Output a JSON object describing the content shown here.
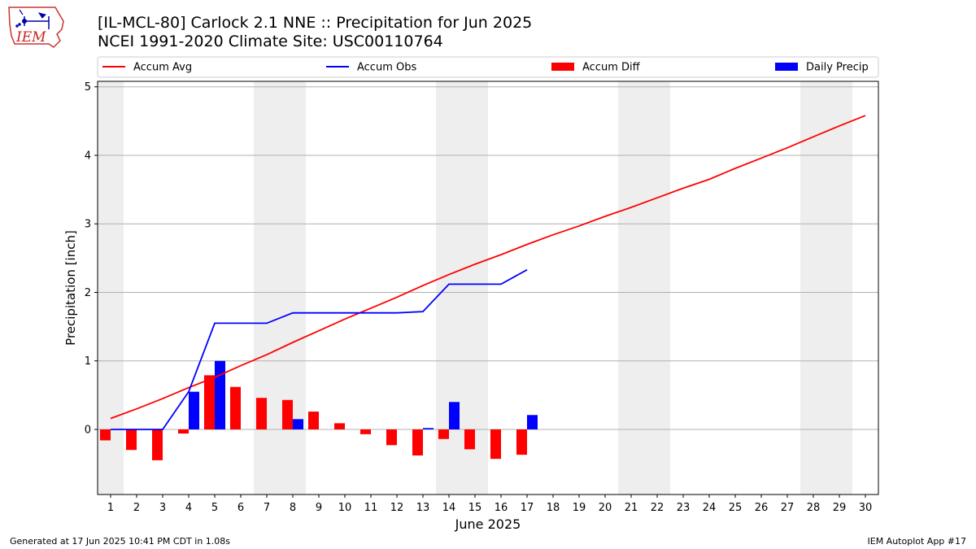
{
  "header": {
    "title_line1": "[IL-MCL-80] Carlock 2.1 NNE :: Precipitation for Jun 2025",
    "title_line2": "NCEI 1991-2020 Climate Site: USC00110764",
    "logo_text": "IEM"
  },
  "footer": {
    "generated": "Generated at 17 Jun 2025 10:41 PM CDT in 1.08s",
    "app": "IEM Autoplot App #17"
  },
  "colors": {
    "accum_avg": "#ff0000",
    "accum_obs": "#0000ff",
    "accum_diff": "#ff0000",
    "daily_precip": "#0000ff",
    "weekend_shade": "#eeeeee",
    "grid": "#b0b0b0"
  },
  "chart_data": {
    "type": "line",
    "xlabel": "June 2025",
    "ylabel": "Precipitation [inch]",
    "xlim": [
      0.5,
      30.5
    ],
    "ylim": [
      -0.95,
      5.08
    ],
    "yticks": [
      0,
      1,
      2,
      3,
      4,
      5
    ],
    "xticks": [
      1,
      2,
      3,
      4,
      5,
      6,
      7,
      8,
      9,
      10,
      11,
      12,
      13,
      14,
      15,
      16,
      17,
      18,
      19,
      20,
      21,
      22,
      23,
      24,
      25,
      26,
      27,
      28,
      29,
      30
    ],
    "grid": "horizontal",
    "legend_position": "top",
    "legend": [
      "Accum Avg",
      "Accum Obs",
      "Accum Diff",
      "Daily Precip"
    ],
    "shaded_days": [
      1,
      7,
      8,
      14,
      15,
      21,
      22,
      28,
      29
    ],
    "series": [
      {
        "name": "Accum Avg",
        "kind": "line",
        "color": "#ff0000",
        "x": [
          1,
          2,
          3,
          4,
          5,
          6,
          7,
          8,
          9,
          10,
          11,
          12,
          13,
          14,
          15,
          16,
          17,
          18,
          19,
          20,
          21,
          22,
          23,
          24,
          25,
          26,
          27,
          28,
          29,
          30
        ],
        "values": [
          0.16,
          0.3,
          0.45,
          0.61,
          0.76,
          0.93,
          1.09,
          1.27,
          1.44,
          1.61,
          1.77,
          1.93,
          2.1,
          2.26,
          2.41,
          2.55,
          2.7,
          2.84,
          2.97,
          3.11,
          3.24,
          3.38,
          3.52,
          3.65,
          3.81,
          3.96,
          4.11,
          4.27,
          4.43,
          4.58
        ]
      },
      {
        "name": "Accum Obs",
        "kind": "line",
        "color": "#0000ff",
        "x": [
          1,
          2,
          3,
          4,
          5,
          6,
          7,
          8,
          9,
          10,
          11,
          12,
          13,
          14,
          15,
          16,
          17
        ],
        "values": [
          0,
          0,
          0,
          0.55,
          1.55,
          1.55,
          1.55,
          1.7,
          1.7,
          1.7,
          1.7,
          1.7,
          1.72,
          2.12,
          2.12,
          2.12,
          2.33
        ]
      },
      {
        "name": "Accum Diff",
        "kind": "bar",
        "color": "#ff0000",
        "x": [
          1,
          2,
          3,
          4,
          5,
          6,
          7,
          8,
          9,
          10,
          11,
          12,
          13,
          14,
          15,
          16,
          17
        ],
        "values": [
          -0.16,
          -0.3,
          -0.45,
          -0.06,
          0.79,
          0.62,
          0.46,
          0.43,
          0.26,
          0.09,
          -0.07,
          -0.23,
          -0.38,
          -0.14,
          -0.29,
          -0.43,
          -0.37
        ]
      },
      {
        "name": "Daily Precip",
        "kind": "bar",
        "color": "#0000ff",
        "x": [
          4,
          5,
          8,
          13,
          14,
          17
        ],
        "values": [
          0.55,
          1.0,
          0.15,
          0.02,
          0.4,
          0.21
        ]
      }
    ]
  }
}
